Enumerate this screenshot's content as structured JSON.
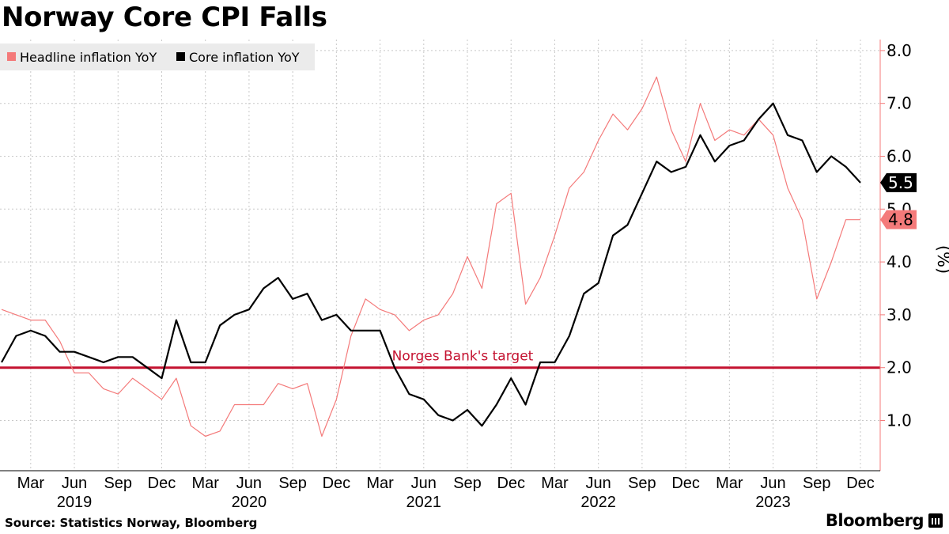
{
  "title": "Norway Core CPI Falls",
  "source": "Source: Statistics Norway, Bloomberg",
  "brand": "Bloomberg",
  "colors": {
    "headline": "#f47a7a",
    "core": "#000000",
    "target": "#c41230",
    "axis": "#f47a7a",
    "grid": "#c8c8c8",
    "legend_bg": "#ebebeb"
  },
  "chart_data": {
    "type": "line",
    "title": "Norway Core CPI Falls",
    "ylabel": "(%)",
    "ylim": [
      0.0,
      8.2
    ],
    "yticks": [
      1.0,
      2.0,
      3.0,
      4.0,
      5.0,
      6.0,
      7.0,
      8.0
    ],
    "ytick_labels": [
      "1.0",
      "2.0",
      "3.0",
      "4.0",
      "5.0",
      "6.0",
      "7.0",
      "8.0"
    ],
    "x_start": "2019-01",
    "x_end": "2023-12",
    "month_ticks": [
      {
        "m": 2,
        "label": "Mar"
      },
      {
        "m": 5,
        "label": "Jun"
      },
      {
        "m": 8,
        "label": "Sep"
      },
      {
        "m": 11,
        "label": "Dec"
      },
      {
        "m": 14,
        "label": "Mar"
      },
      {
        "m": 17,
        "label": "Jun"
      },
      {
        "m": 20,
        "label": "Sep"
      },
      {
        "m": 23,
        "label": "Dec"
      },
      {
        "m": 26,
        "label": "Mar"
      },
      {
        "m": 29,
        "label": "Jun"
      },
      {
        "m": 32,
        "label": "Sep"
      },
      {
        "m": 35,
        "label": "Dec"
      },
      {
        "m": 38,
        "label": "Mar"
      },
      {
        "m": 41,
        "label": "Jun"
      },
      {
        "m": 44,
        "label": "Sep"
      },
      {
        "m": 47,
        "label": "Dec"
      },
      {
        "m": 50,
        "label": "Mar"
      },
      {
        "m": 53,
        "label": "Jun"
      },
      {
        "m": 56,
        "label": "Sep"
      },
      {
        "m": 59,
        "label": "Dec"
      }
    ],
    "year_labels": [
      {
        "m": 5,
        "label": "2019"
      },
      {
        "m": 17,
        "label": "2020"
      },
      {
        "m": 29,
        "label": "2021"
      },
      {
        "m": 41,
        "label": "2022"
      },
      {
        "m": 53,
        "label": "2023"
      }
    ],
    "series": [
      {
        "name": "Headline inflation YoY",
        "last_label": "4.8",
        "values": [
          3.1,
          3.0,
          2.9,
          2.9,
          2.5,
          1.9,
          1.9,
          1.6,
          1.5,
          1.8,
          1.6,
          1.4,
          1.8,
          0.9,
          0.7,
          0.8,
          1.3,
          1.3,
          1.3,
          1.7,
          1.6,
          1.7,
          0.7,
          1.4,
          2.6,
          3.3,
          3.1,
          3.0,
          2.7,
          2.9,
          3.0,
          3.4,
          4.1,
          3.5,
          5.1,
          5.3,
          3.2,
          3.7,
          4.5,
          5.4,
          5.7,
          6.3,
          6.8,
          6.5,
          6.9,
          7.5,
          6.5,
          5.9,
          7.0,
          6.3,
          6.5,
          6.4,
          6.7,
          6.4,
          5.4,
          4.8,
          3.3,
          4.0,
          4.8,
          4.8
        ]
      },
      {
        "name": "Core inflation YoY",
        "last_label": "5.5",
        "values": [
          2.1,
          2.6,
          2.7,
          2.6,
          2.3,
          2.3,
          2.2,
          2.1,
          2.2,
          2.2,
          2.0,
          1.8,
          2.9,
          2.1,
          2.1,
          2.8,
          3.0,
          3.1,
          3.5,
          3.7,
          3.3,
          3.4,
          2.9,
          3.0,
          2.7,
          2.7,
          2.7,
          2.0,
          1.5,
          1.4,
          1.1,
          1.0,
          1.2,
          0.9,
          1.3,
          1.8,
          1.3,
          2.1,
          2.1,
          2.6,
          3.4,
          3.6,
          4.5,
          4.7,
          5.3,
          5.9,
          5.7,
          5.8,
          6.4,
          5.9,
          6.2,
          6.3,
          6.7,
          7.0,
          6.4,
          6.3,
          5.7,
          6.0,
          5.8,
          5.5
        ]
      }
    ],
    "reference_line": {
      "value": 2.0,
      "label": "Norges Bank's target"
    }
  }
}
